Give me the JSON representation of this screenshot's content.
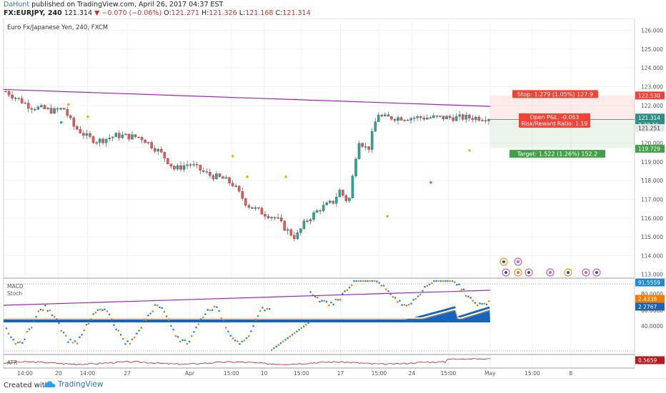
{
  "header": {
    "author": "DaHunt",
    "published": "published on TradingView.com, April 26, 2017 04:37 EST",
    "symbol": "FX:EURJPY, 240",
    "last": "121.314",
    "change": "−0.070 (−0.06%)",
    "o_label": "O:",
    "o": "121.271",
    "h_label": "H:",
    "h": "121.326",
    "l_label": "L:",
    "l": "121.168",
    "c_label": "C:",
    "c": "121.314"
  },
  "footer": {
    "created_with": "Created with",
    "brand": "TradingView"
  },
  "chart_data": {
    "type": "candlestick",
    "title": "Euro Fx/Japanese Yen, 240, FXCM",
    "ylim": [
      112.8,
      126.4
    ],
    "y_ticks": [
      "126.000",
      "125.000",
      "124.000",
      "123.000",
      "122.000",
      "121.000",
      "120.000",
      "119.000",
      "118.000",
      "117.000",
      "116.000",
      "115.000",
      "114.000",
      "113.000"
    ],
    "x_ticks": [
      "14:00",
      "20",
      "14:00",
      "27",
      "Apr",
      "15:00",
      "10",
      "15:00",
      "17",
      "15:00",
      "24",
      "15:00",
      "May",
      "15:00",
      "8"
    ],
    "x_tick_pos": [
      0.034,
      0.087,
      0.133,
      0.196,
      0.295,
      0.361,
      0.413,
      0.472,
      0.534,
      0.595,
      0.647,
      0.705,
      0.771,
      0.838,
      0.899
    ],
    "price_labels": {
      "stop": "122.530",
      "last": "121.314",
      "timer": "3:22:16",
      "entry": "121.251",
      "target": "119.729"
    },
    "trendline": {
      "from": 122.85,
      "to": 121.95
    },
    "position": {
      "stop_label": "Stop: 1.279 (1.05%) 127.9",
      "pnl_label": "Open P&L: -0.063",
      "rr_label": "Risk/Reward Ratio: 1.19",
      "target_label": "Target: 1.522 (1.26%) 152.2",
      "stop": 122.53,
      "entry": 121.251,
      "target": 119.729
    },
    "panels": {
      "macd_label": "MACD",
      "stoch_label": "Stoch",
      "macd_tick": "60.0000",
      "stoch_ticks": [
        "80.0000",
        "40.0000"
      ],
      "stoch_value": "91.5559",
      "macd_value1": "2.4338",
      "macd_value2": "2.2767",
      "atr_label": "ATR",
      "atr_value": "0.5659"
    },
    "colors": {
      "up": "#26a69a",
      "down": "#ef5350",
      "trend": "#9c27b0",
      "macd_fill": "#1565c0",
      "stop": "#f44336",
      "target": "#43a047",
      "last": "#2f8f87"
    }
  }
}
